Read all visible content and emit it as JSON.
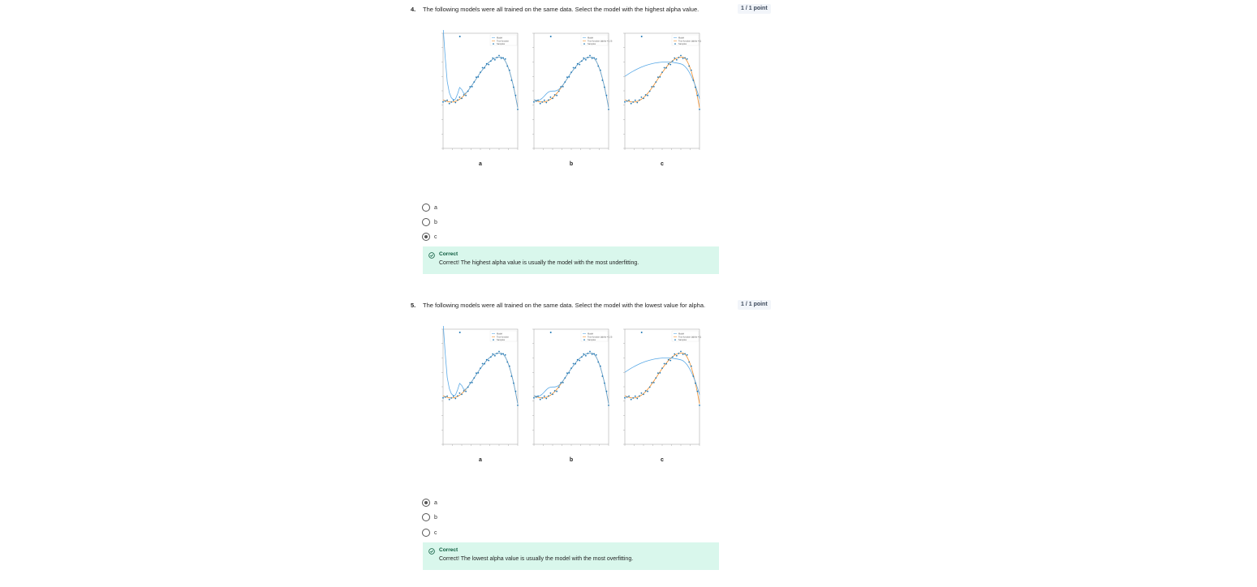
{
  "questions": [
    {
      "number": "4.",
      "text": "The following models were all trained on the same data. Select the model with the highest alpha value.",
      "points": "1 / 1 point",
      "plots": [
        {
          "label": "a",
          "legend": [
            "Model",
            "True function",
            "Samples"
          ]
        },
        {
          "label": "b",
          "legend": [
            "Model",
            "True function (alpha = 1.0)",
            "Samples"
          ]
        },
        {
          "label": "c",
          "legend": [
            "Model",
            "True function (alpha = 1)",
            "Samples"
          ]
        }
      ],
      "options": [
        {
          "label": "a",
          "selected": false
        },
        {
          "label": "b",
          "selected": false
        },
        {
          "label": "c",
          "selected": true
        }
      ],
      "feedback": {
        "title": "Correct",
        "text": "Correct! The highest alpha value is usually the model with the most underfitting."
      }
    },
    {
      "number": "5.",
      "text": "The following models were all trained on the same data. Select the model with the lowest value for alpha.",
      "points": "1 / 1 point",
      "plots": [
        {
          "label": "a",
          "legend": [
            "Model",
            "True function",
            "Samples"
          ]
        },
        {
          "label": "b",
          "legend": [
            "Model",
            "True function (alpha = 1.0)",
            "Samples"
          ]
        },
        {
          "label": "c",
          "legend": [
            "Model",
            "True function (alpha = 1)",
            "Samples"
          ]
        }
      ],
      "options": [
        {
          "label": "a",
          "selected": true
        },
        {
          "label": "b",
          "selected": false
        },
        {
          "label": "c",
          "selected": false
        }
      ],
      "feedback": {
        "title": "Correct",
        "text": "Correct! The lowest alpha value is usually the model with the most overfitting."
      }
    }
  ],
  "colors": {
    "model_line": "#5aa9e6",
    "true_function": "#f28e2b",
    "samples": "#1f77b4",
    "feedback_bg": "#d9f7ec",
    "feedback_title": "#0b5a3d"
  }
}
